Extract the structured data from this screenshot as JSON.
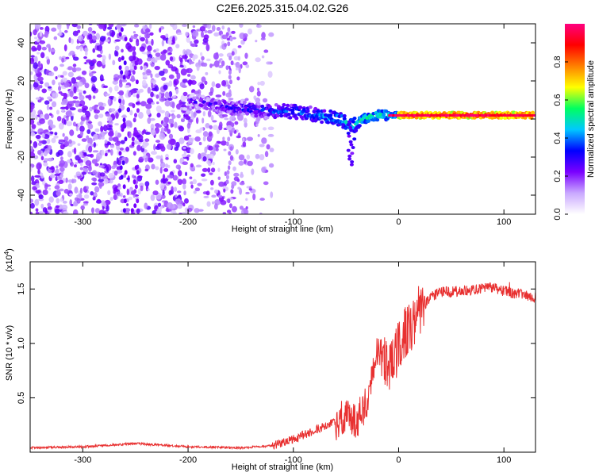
{
  "title": "C2E6.2025.315.04.02.G26",
  "chart_data": [
    {
      "type": "heatmap",
      "xlabel": "Height of straight line (km)",
      "ylabel": "Frequency (Hz)",
      "xlim": [
        -350,
        130
      ],
      "ylim": [
        -50,
        50
      ],
      "xticks": [
        -300,
        -200,
        -100,
        0,
        100
      ],
      "yticks": [
        -40,
        -20,
        0,
        20,
        40
      ],
      "colorbar": {
        "label": "Normalized spectral amplitude",
        "range": [
          0,
          1
        ],
        "ticks": [
          "0.0",
          "0.2",
          "0.4",
          "0.6",
          "0.8"
        ],
        "colors": [
          "#ffffff",
          "#c9a8ff",
          "#7a00ff",
          "#0000ff",
          "#00c8ff",
          "#00ff60",
          "#ffff00",
          "#ff8000",
          "#ff0000",
          "#ff0080"
        ]
      },
      "ridge": {
        "x": [
          -200,
          -180,
          -160,
          -140,
          -120,
          -100,
          -85,
          -70,
          -55,
          -45,
          -38,
          -30,
          -20,
          -10,
          0,
          20,
          40,
          60,
          80,
          100,
          130
        ],
        "y": [
          10,
          8,
          6,
          5,
          4,
          4,
          3,
          1,
          0,
          -4,
          -2,
          1,
          2,
          2,
          2,
          2,
          2,
          2,
          2,
          2,
          2
        ]
      }
    },
    {
      "type": "line",
      "xlabel": "Height of straight line (km)",
      "ylabel": "SNR (10 * v/v)",
      "scale_label": "(x10",
      "scale_exp": "4",
      "scale_close": ")",
      "xlim": [
        -350,
        130
      ],
      "ylim": [
        0,
        1.75
      ],
      "xticks": [
        -300,
        -200,
        -100,
        0,
        100
      ],
      "yticks": [
        "0.5",
        "1.0",
        "1.5"
      ],
      "color": "#e83030",
      "series": [
        {
          "x": [
            -350,
            -300,
            -250,
            -200,
            -150,
            -120,
            -100,
            -80,
            -60,
            -50,
            -40,
            -30,
            -25,
            -20,
            -15,
            -10,
            -5,
            0,
            10,
            20,
            30,
            40,
            60,
            80,
            90,
            100,
            110,
            120,
            130
          ],
          "y": [
            0.04,
            0.05,
            0.08,
            0.05,
            0.04,
            0.06,
            0.12,
            0.2,
            0.28,
            0.32,
            0.3,
            0.45,
            0.7,
            0.9,
            0.85,
            0.75,
            0.8,
            1.0,
            1.15,
            1.3,
            1.42,
            1.47,
            1.48,
            1.5,
            1.52,
            1.48,
            1.46,
            1.45,
            1.42
          ]
        }
      ]
    }
  ]
}
